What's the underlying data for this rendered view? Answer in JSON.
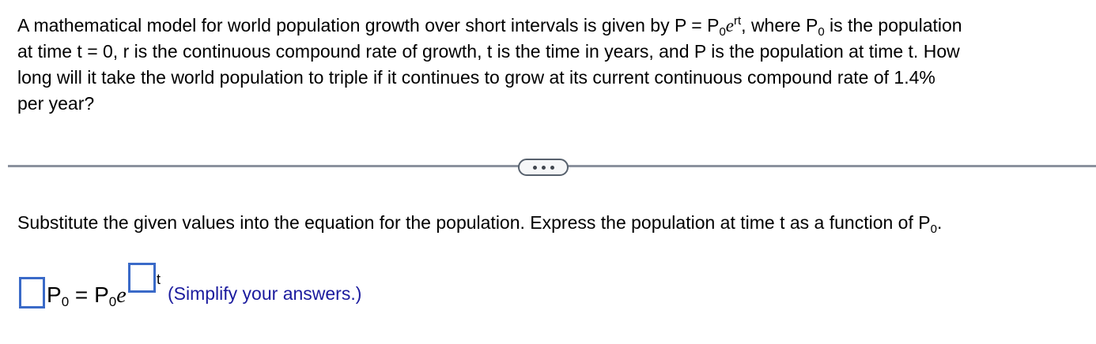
{
  "colors": {
    "background": "#ffffff",
    "text": "#000000",
    "input_box_border": "#3a6ac8",
    "hint_text": "#1b1b9e",
    "divider_line": "#8b929e",
    "pill_border": "#57616d",
    "pill_fill": "#f6f7f8",
    "pill_dots": "#40464e"
  },
  "icons": {
    "divider_toggle": "ellipsis-icon"
  },
  "problem": {
    "line1_before_formula": "A mathematical model for world population growth over short intervals is given by P = P",
    "formula": {
      "sub": "0",
      "base": "e",
      "exponent": "rt"
    },
    "line1_mid": ", where P",
    "line1_mid_sub": "0",
    "line1_after": " is the population",
    "line2": "at time t = 0, r is the continuous compound rate of growth, t is the time in years, and P is the population at time t. How",
    "line3": "long will it take the world population to triple if it continues to grow at its current continuous compound rate of 1.4%",
    "line4": "per year?"
  },
  "answer_section": {
    "instruction_before_sub": "Substitute the given values into the equation for the population. Express the population at time t as a function of P",
    "instruction_sub": "0",
    "instruction_after": ".",
    "equation": {
      "lhs_base": "P",
      "lhs_sub": "0",
      "equals": " = ",
      "rhs_base": "P",
      "rhs_sub": "0",
      "exp_base": "e",
      "exp_var": "t",
      "coefficient_input": {
        "value": "",
        "placeholder": ""
      },
      "exponent_input": {
        "value": "",
        "placeholder": ""
      }
    },
    "hint": "(Simplify your answers.)"
  }
}
